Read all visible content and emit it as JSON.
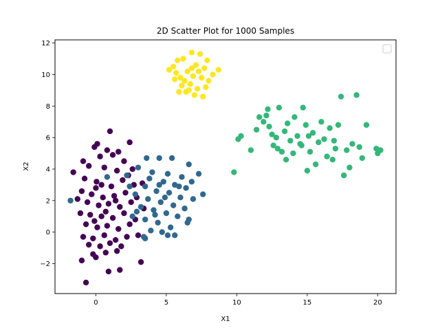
{
  "chart_data": {
    "type": "scatter",
    "title": "2D Scatter Plot for 1000 Samples",
    "xlabel": "X1",
    "ylabel": "X2",
    "xlim": [
      -2.9,
      21.3
    ],
    "ylim": [
      -3.9,
      12.2
    ],
    "x_ticks": [
      0,
      5,
      10,
      15,
      20
    ],
    "y_ticks": [
      -2,
      0,
      2,
      4,
      6,
      8,
      10,
      12
    ],
    "grid": false,
    "legend": {
      "placement": "top-right",
      "entries": []
    },
    "series": [
      {
        "color": "#440154",
        "points": [
          [
            0.05,
            3.2
          ],
          [
            -1.6,
            3.8
          ],
          [
            0.1,
            5.6
          ],
          [
            -0.1,
            5.4
          ],
          [
            1.0,
            6.4
          ],
          [
            2.4,
            5.7
          ],
          [
            0.3,
            4.8
          ],
          [
            1.2,
            4.9
          ],
          [
            2.0,
            4.5
          ],
          [
            -0.5,
            4.2
          ],
          [
            0.6,
            4.1
          ],
          [
            1.5,
            3.9
          ],
          [
            2.6,
            4.0
          ],
          [
            -0.8,
            3.4
          ],
          [
            0.4,
            3.0
          ],
          [
            1.1,
            2.9
          ],
          [
            1.9,
            3.3
          ],
          [
            2.7,
            3.0
          ],
          [
            3.3,
            3.1
          ],
          [
            -1.0,
            2.6
          ],
          [
            -0.3,
            2.4
          ],
          [
            0.5,
            2.2
          ],
          [
            1.3,
            2.3
          ],
          [
            2.1,
            2.5
          ],
          [
            2.9,
            2.2
          ],
          [
            -0.6,
            1.9
          ],
          [
            0.2,
            1.7
          ],
          [
            0.9,
            1.8
          ],
          [
            1.7,
            1.6
          ],
          [
            2.5,
            1.9
          ],
          [
            3.4,
            1.5
          ],
          [
            -1.1,
            1.2
          ],
          [
            -0.4,
            1.1
          ],
          [
            0.4,
            1.0
          ],
          [
            1.2,
            0.9
          ],
          [
            2.0,
            1.2
          ],
          [
            2.8,
            0.8
          ],
          [
            -0.7,
            0.5
          ],
          [
            0.1,
            0.3
          ],
          [
            0.8,
            0.4
          ],
          [
            1.6,
            0.2
          ],
          [
            2.4,
            0.5
          ],
          [
            -0.9,
            -0.3
          ],
          [
            -0.2,
            -0.4
          ],
          [
            0.6,
            -0.2
          ],
          [
            1.4,
            -0.5
          ],
          [
            2.2,
            -0.3
          ],
          [
            3.0,
            -0.2
          ],
          [
            -0.5,
            -0.8
          ],
          [
            0.3,
            -0.9
          ],
          [
            1.0,
            -0.7
          ],
          [
            1.8,
            -0.9
          ],
          [
            -1.0,
            -1.8
          ],
          [
            0.0,
            -1.6
          ],
          [
            0.7,
            -1.3
          ],
          [
            1.5,
            -1.2
          ],
          [
            3.2,
            -1.9
          ],
          [
            -0.7,
            -3.2
          ],
          [
            0.9,
            -2.5
          ],
          [
            1.7,
            -2.4
          ],
          [
            -0.2,
            -1.4
          ],
          [
            -1.3,
            2.1
          ],
          [
            -0.9,
            4.5
          ],
          [
            0.8,
            5.2
          ],
          [
            1.6,
            5.1
          ],
          [
            2.3,
            3.6
          ],
          [
            0.0,
            2.8
          ],
          [
            0.7,
            1.3
          ],
          [
            1.4,
            2.0
          ],
          [
            -0.1,
            0.7
          ]
        ]
      },
      {
        "color": "#31688e",
        "points": [
          [
            -1.8,
            2.0
          ],
          [
            0.8,
            3.5
          ],
          [
            2.2,
            3.6
          ],
          [
            3.6,
            4.7
          ],
          [
            4.5,
            4.7
          ],
          [
            5.4,
            4.7
          ],
          [
            6.6,
            4.3
          ],
          [
            7.3,
            3.7
          ],
          [
            3.0,
            4.1
          ],
          [
            4.0,
            3.8
          ],
          [
            5.1,
            3.7
          ],
          [
            6.1,
            3.5
          ],
          [
            4.8,
            3.2
          ],
          [
            5.6,
            3.0
          ],
          [
            6.4,
            2.8
          ],
          [
            7.6,
            2.4
          ],
          [
            3.5,
            2.9
          ],
          [
            4.3,
            2.6
          ],
          [
            5.2,
            2.5
          ],
          [
            6.0,
            2.2
          ],
          [
            6.9,
            2.1
          ],
          [
            2.8,
            2.4
          ],
          [
            3.7,
            2.1
          ],
          [
            4.6,
            1.9
          ],
          [
            5.5,
            1.7
          ],
          [
            6.3,
            1.5
          ],
          [
            3.2,
            1.6
          ],
          [
            4.1,
            1.4
          ],
          [
            5.0,
            1.2
          ],
          [
            5.8,
            1.0
          ],
          [
            6.6,
            0.8
          ],
          [
            2.6,
            1.0
          ],
          [
            3.5,
            0.8
          ],
          [
            4.4,
            0.6
          ],
          [
            5.3,
            0.3
          ],
          [
            6.5,
            0.6
          ],
          [
            3.9,
            0.1
          ],
          [
            4.7,
            0.0
          ],
          [
            3.4,
            -0.3
          ],
          [
            5.1,
            -0.2
          ],
          [
            5.6,
            -0.2
          ],
          [
            3.5,
            -0.4
          ],
          [
            4.2,
            1.1
          ],
          [
            2.9,
            1.3
          ],
          [
            4.9,
            2.2
          ],
          [
            5.9,
            2.9
          ],
          [
            6.8,
            3.2
          ],
          [
            3.8,
            3.4
          ],
          [
            2.4,
            2.9
          ],
          [
            4.5,
            3.0
          ]
        ]
      },
      {
        "color": "#35b779",
        "points": [
          [
            9.8,
            3.8
          ],
          [
            10.1,
            5.9
          ],
          [
            10.3,
            6.1
          ],
          [
            11.0,
            5.2
          ],
          [
            11.4,
            6.5
          ],
          [
            11.6,
            7.3
          ],
          [
            11.9,
            7.0
          ],
          [
            12.1,
            7.4
          ],
          [
            12.3,
            6.7
          ],
          [
            12.5,
            6.2
          ],
          [
            12.6,
            5.5
          ],
          [
            12.9,
            5.3
          ],
          [
            13.2,
            5.1
          ],
          [
            13.0,
            7.9
          ],
          [
            13.4,
            6.4
          ],
          [
            13.6,
            6.9
          ],
          [
            13.8,
            5.8
          ],
          [
            14.0,
            5.0
          ],
          [
            14.1,
            7.3
          ],
          [
            14.3,
            6.1
          ],
          [
            14.5,
            5.6
          ],
          [
            14.7,
            7.9
          ],
          [
            14.9,
            6.8
          ],
          [
            15.0,
            3.9
          ],
          [
            15.2,
            5.1
          ],
          [
            15.4,
            6.3
          ],
          [
            15.6,
            4.3
          ],
          [
            15.8,
            5.7
          ],
          [
            16.0,
            7.0
          ],
          [
            16.2,
            5.9
          ],
          [
            16.4,
            4.8
          ],
          [
            16.6,
            6.6
          ],
          [
            16.8,
            4.6
          ],
          [
            17.0,
            5.3
          ],
          [
            17.2,
            6.8
          ],
          [
            17.4,
            8.6
          ],
          [
            17.6,
            3.6
          ],
          [
            17.8,
            5.2
          ],
          [
            18.0,
            4.1
          ],
          [
            18.2,
            5.6
          ],
          [
            18.5,
            8.7
          ],
          [
            18.7,
            5.4
          ],
          [
            18.9,
            4.7
          ],
          [
            19.2,
            6.8
          ],
          [
            19.9,
            5.3
          ],
          [
            20.2,
            5.2
          ],
          [
            20.0,
            5.0
          ],
          [
            12.8,
            6.0
          ],
          [
            13.5,
            4.6
          ],
          [
            15.1,
            6.1
          ],
          [
            16.9,
            5.8
          ],
          [
            12.2,
            7.8
          ],
          [
            14.6,
            5.5
          ]
        ]
      },
      {
        "color": "#fde725",
        "points": [
          [
            6.8,
            11.4
          ],
          [
            6.2,
            11.0
          ],
          [
            5.8,
            10.9
          ],
          [
            5.2,
            10.3
          ],
          [
            5.5,
            10.5
          ],
          [
            7.4,
            11.3
          ],
          [
            7.9,
            10.9
          ],
          [
            8.7,
            10.3
          ],
          [
            8.3,
            10.0
          ],
          [
            7.7,
            10.4
          ],
          [
            7.1,
            10.6
          ],
          [
            6.5,
            10.2
          ],
          [
            6.0,
            9.8
          ],
          [
            5.6,
            9.7
          ],
          [
            6.3,
            9.6
          ],
          [
            6.9,
            9.9
          ],
          [
            7.5,
            9.8
          ],
          [
            8.0,
            9.6
          ],
          [
            6.1,
            9.3
          ],
          [
            6.7,
            9.4
          ],
          [
            7.2,
            9.1
          ],
          [
            7.8,
            9.2
          ],
          [
            5.9,
            8.9
          ],
          [
            6.4,
            8.9
          ],
          [
            7.0,
            8.7
          ],
          [
            7.6,
            8.6
          ],
          [
            6.6,
            9.0
          ],
          [
            7.3,
            10.2
          ],
          [
            6.8,
            10.4
          ],
          [
            5.7,
            10.1
          ]
        ]
      }
    ]
  }
}
